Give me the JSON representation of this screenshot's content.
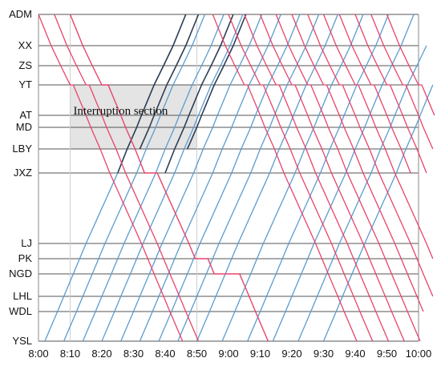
{
  "chart_data": {
    "type": "line",
    "title": "",
    "xlabel": "",
    "ylabel": "",
    "x_ticks": [
      "8:00",
      "8:10",
      "8:20",
      "8:30",
      "8:40",
      "8:50",
      "9:00",
      "9:10",
      "9:20",
      "9:30",
      "9:40",
      "9:50",
      "10:00"
    ],
    "stations": [
      {
        "name": "ADM",
        "km": 0
      },
      {
        "name": "XX",
        "km": 2.5
      },
      {
        "name": "ZS",
        "km": 4.3
      },
      {
        "name": "YT",
        "km": 6.1
      },
      {
        "name": "AT",
        "km": 8.6
      },
      {
        "name": "MD",
        "km": 9.6
      },
      {
        "name": "LBY",
        "km": 11.3
      },
      {
        "name": "JXZ",
        "km": 13.3
      },
      {
        "name": "LJ",
        "km": 19.5
      },
      {
        "name": "PK",
        "km": 20.8
      },
      {
        "name": "NGD",
        "km": 22.1
      },
      {
        "name": "LHL",
        "km": 23.7
      },
      {
        "name": "WDL",
        "km": 25.0
      },
      {
        "name": "YSL",
        "km": 27.5
      }
    ],
    "interruption": {
      "label": "Interruption section",
      "time_range": [
        "8:10",
        "8:50"
      ],
      "stations": [
        "YT",
        "LBY"
      ]
    },
    "colors": {
      "down": "#e8436b",
      "up": "#5b9bd0",
      "adjusted_up": "#2c3e55",
      "grid": "#555555",
      "shade": "#e4e4e4"
    },
    "down_trains": {
      "normal_departures_min": [
        0,
        5,
        55,
        60,
        65,
        70,
        75,
        80,
        85,
        90,
        95,
        100,
        105,
        110
      ],
      "delayed_train": {
        "departure_min": 10,
        "stops": [
          {
            "station": "YT",
            "dwell_min": 2
          },
          {
            "station": "JXZ",
            "dwell_min": 4
          },
          {
            "station": "PK",
            "dwell_min": 4
          },
          {
            "station": "NGD",
            "dwell_min": 8
          }
        ]
      }
    },
    "up_trains": {
      "full_route_departures_from_YSL_min": [
        2,
        8,
        14,
        20,
        26,
        32,
        38,
        44,
        50,
        58,
        66,
        74,
        82,
        90
      ],
      "turnback_at_JXZ": [
        {
          "from_min": 8,
          "short_turn": false
        },
        {
          "from_min": 14,
          "short_turn": false
        }
      ],
      "adjusted_departures_from_JXZ_min": [
        25,
        40
      ],
      "lbi_turnback_departures_min": [
        32,
        47
      ]
    }
  }
}
